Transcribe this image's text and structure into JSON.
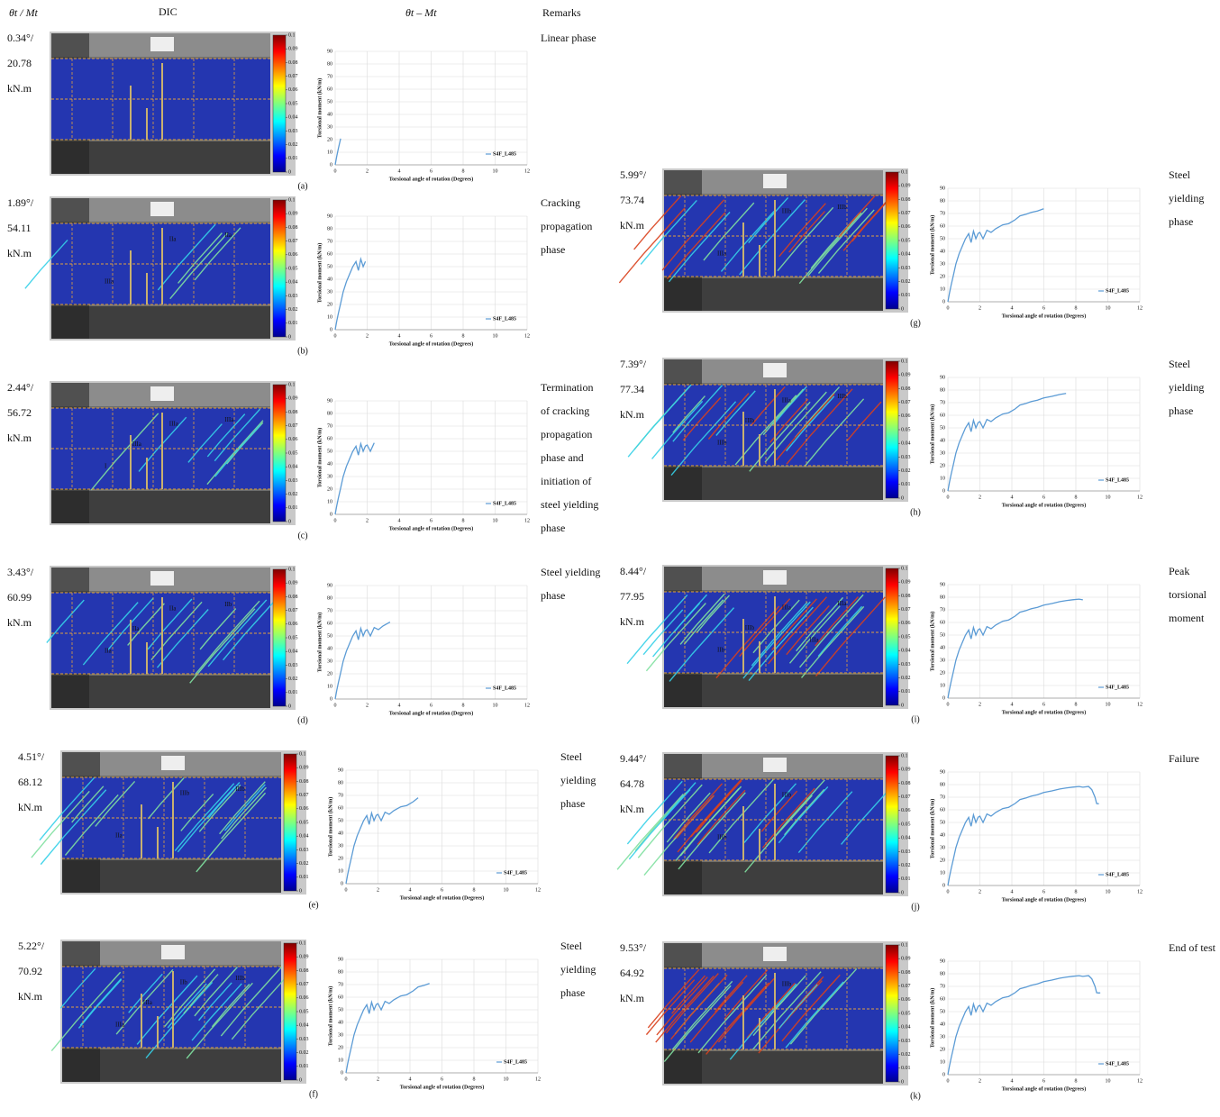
{
  "header": {
    "angle_moment": "θt / Mt",
    "dic": "DIC",
    "curve": "θt – Mt",
    "remarks": "Remarks"
  },
  "colorbar": {
    "ticks": [
      0,
      0.01,
      0.02,
      0.03,
      0.04,
      0.05,
      0.06,
      0.07,
      0.08,
      0.09,
      0.1
    ]
  },
  "panels": [
    {
      "label": "(a)",
      "angle": "0.34°/",
      "moment": "20.78",
      "unit": "kN.m",
      "remark": [
        "Linear phase"
      ],
      "dic_labels": []
    },
    {
      "label": "(b)",
      "angle": "1.89°/",
      "moment": "54.11",
      "unit": "kN.m",
      "remark": [
        "Cracking",
        "propagation",
        "phase"
      ],
      "dic_labels": [
        "IIa",
        "IIIa",
        "IIa"
      ]
    },
    {
      "label": "(c)",
      "angle": "2.44°/",
      "moment": "56.72",
      "unit": "kN.m",
      "remark": [
        "Termination",
        "of cracking",
        "propagation",
        "phase and",
        "initiation of",
        "steel yielding",
        "phase"
      ],
      "dic_labels": [
        "IIIa",
        "I",
        "IIIa",
        "IIIa"
      ]
    },
    {
      "label": "(d)",
      "angle": "3.43°/",
      "moment": "60.99",
      "unit": "kN.m",
      "remark": [
        "Steel yielding",
        "phase"
      ],
      "dic_labels": [
        "IIa",
        "IIa",
        "IIb",
        "IIa"
      ]
    },
    {
      "label": "(e)",
      "angle": "4.51°/",
      "moment": "68.12",
      "unit": "kN.m",
      "remark": [
        "Steel",
        "yielding",
        "phase"
      ],
      "dic_labels": [
        "IIIb",
        "IIa",
        "IIIb"
      ]
    },
    {
      "label": "(f)",
      "angle": "5.22°/",
      "moment": "70.92",
      "unit": "kN.m",
      "remark": [
        "Steel",
        "yielding",
        "phase"
      ],
      "dic_labels": [
        "IIb",
        "IIIa",
        "IIIb",
        "IIIa"
      ]
    },
    {
      "label": "(g)",
      "angle": "5.99°/",
      "moment": "73.74",
      "unit": "kN.m",
      "remark": [
        "Steel",
        "yielding",
        "phase"
      ],
      "dic_labels": [
        "IIIb",
        "IIIa",
        "IIIb"
      ]
    },
    {
      "label": "(h)",
      "angle": "7.39°/",
      "moment": "77.34",
      "unit": "kN.m",
      "remark": [
        "Steel",
        "yielding",
        "phase"
      ],
      "dic_labels": [
        "IIIa",
        "IIIb",
        "IIIb",
        "IIIb"
      ]
    },
    {
      "label": "(i)",
      "angle": "8.44°/",
      "moment": "77.95",
      "unit": "kN.m",
      "remark": [
        "Peak",
        "torsional",
        "moment"
      ],
      "dic_labels": [
        "IIIa",
        "IIb",
        "IIIa",
        "IIIb",
        "IIIa"
      ]
    },
    {
      "label": "(j)",
      "angle": "9.44°/",
      "moment": "64.78",
      "unit": "kN.m",
      "remark": [
        "Failure"
      ],
      "dic_labels": [
        "IIIb",
        "IIIb"
      ]
    },
    {
      "label": "(k)",
      "angle": "9.53°/",
      "moment": "64.92",
      "unit": "kN.m",
      "remark": [
        "End of test"
      ],
      "dic_labels": [
        "IIIb"
      ]
    }
  ],
  "chart_data": [
    {
      "type": "line",
      "xlabel": "Torsional angle of rotation (Degrees)",
      "ylabel": "Torsional moment (kN/m)",
      "xlim": [
        0,
        12
      ],
      "ylim": [
        0,
        90
      ],
      "xticks": [
        0,
        2,
        4,
        6,
        8,
        10,
        12
      ],
      "yticks": [
        0,
        10,
        20,
        30,
        40,
        50,
        60,
        70,
        80,
        90
      ],
      "grid": true,
      "legend": "lower right",
      "series": [
        {
          "name": "S4F_L485",
          "color": "#5b9bd5",
          "x": [
            0,
            0.1,
            0.2,
            0.34
          ],
          "values": [
            0,
            7,
            13,
            20.78
          ]
        }
      ]
    },
    {
      "type": "line",
      "xlabel": "Torsional angle of rotation (Degrees)",
      "ylabel": "Torsional moment (kN/m)",
      "xlim": [
        0,
        12
      ],
      "ylim": [
        0,
        90
      ],
      "xticks": [
        0,
        2,
        4,
        6,
        8,
        10,
        12
      ],
      "yticks": [
        0,
        10,
        20,
        30,
        40,
        50,
        60,
        70,
        80,
        90
      ],
      "grid": true,
      "legend": "lower right",
      "series": [
        {
          "name": "S4F_L485",
          "color": "#5b9bd5",
          "x": [
            0,
            0.1,
            0.2,
            0.34,
            0.5,
            0.7,
            0.9,
            1.1,
            1.3,
            1.45,
            1.6,
            1.75,
            1.89
          ],
          "values": [
            0,
            7,
            13,
            20.78,
            30,
            38,
            44,
            50,
            54,
            47,
            56,
            50,
            54.11
          ]
        }
      ]
    },
    {
      "type": "line",
      "xlabel": "Torsional angle of rotation (Degrees)",
      "ylabel": "Torsional moment (kN/m)",
      "xlim": [
        0,
        12
      ],
      "ylim": [
        0,
        90
      ],
      "xticks": [
        0,
        2,
        4,
        6,
        8,
        10,
        12
      ],
      "yticks": [
        0,
        10,
        20,
        30,
        40,
        50,
        60,
        70,
        80,
        90
      ],
      "grid": true,
      "legend": "lower right",
      "series": [
        {
          "name": "S4F_L485",
          "color": "#5b9bd5",
          "x": [
            0,
            0.1,
            0.2,
            0.34,
            0.5,
            0.7,
            0.9,
            1.1,
            1.3,
            1.45,
            1.6,
            1.75,
            1.89,
            2.0,
            2.2,
            2.44
          ],
          "values": [
            0,
            7,
            13,
            20.78,
            30,
            38,
            44,
            50,
            54,
            47,
            56,
            50,
            54.11,
            55,
            50,
            56.72
          ]
        }
      ]
    },
    {
      "type": "line",
      "xlabel": "Torsional angle of rotation (Degrees)",
      "ylabel": "Torsional moment (kN/m)",
      "xlim": [
        0,
        12
      ],
      "ylim": [
        0,
        90
      ],
      "xticks": [
        0,
        2,
        4,
        6,
        8,
        10,
        12
      ],
      "yticks": [
        0,
        10,
        20,
        30,
        40,
        50,
        60,
        70,
        80,
        90
      ],
      "grid": true,
      "legend": "lower right",
      "series": [
        {
          "name": "S4F_L485",
          "color": "#5b9bd5",
          "x": [
            0,
            0.1,
            0.2,
            0.34,
            0.5,
            0.7,
            0.9,
            1.1,
            1.3,
            1.45,
            1.6,
            1.75,
            1.89,
            2.0,
            2.2,
            2.44,
            2.7,
            3.0,
            3.43
          ],
          "values": [
            0,
            7,
            13,
            20.78,
            30,
            38,
            44,
            50,
            54,
            47,
            56,
            50,
            54.11,
            55,
            50,
            56.72,
            55,
            58,
            60.99
          ]
        }
      ]
    },
    {
      "type": "line",
      "xlabel": "Torsional angle of rotation (Degrees)",
      "ylabel": "Torsional moment (kN/m)",
      "xlim": [
        0,
        12
      ],
      "ylim": [
        0,
        90
      ],
      "xticks": [
        0,
        2,
        4,
        6,
        8,
        10,
        12
      ],
      "yticks": [
        0,
        10,
        20,
        30,
        40,
        50,
        60,
        70,
        80,
        90
      ],
      "grid": true,
      "legend": "lower right",
      "series": [
        {
          "name": "S4F_L485",
          "color": "#5b9bd5",
          "x": [
            0,
            0.1,
            0.2,
            0.34,
            0.5,
            0.7,
            0.9,
            1.1,
            1.3,
            1.45,
            1.6,
            1.75,
            1.89,
            2.0,
            2.2,
            2.44,
            2.7,
            3.0,
            3.43,
            3.8,
            4.2,
            4.51
          ],
          "values": [
            0,
            7,
            13,
            20.78,
            30,
            38,
            44,
            50,
            54,
            47,
            56,
            50,
            54.11,
            55,
            50,
            56.72,
            55,
            58,
            60.99,
            62,
            65,
            68.12
          ]
        }
      ]
    },
    {
      "type": "line",
      "xlabel": "Torsional angle of rotation (Degrees)",
      "ylabel": "Torsional moment (kN/m)",
      "xlim": [
        0,
        12
      ],
      "ylim": [
        0,
        90
      ],
      "xticks": [
        0,
        2,
        4,
        6,
        8,
        10,
        12
      ],
      "yticks": [
        0,
        10,
        20,
        30,
        40,
        50,
        60,
        70,
        80,
        90
      ],
      "grid": true,
      "legend": "lower right",
      "series": [
        {
          "name": "S4F_L485",
          "color": "#5b9bd5",
          "x": [
            0,
            0.1,
            0.2,
            0.34,
            0.5,
            0.7,
            0.9,
            1.1,
            1.3,
            1.45,
            1.6,
            1.75,
            1.89,
            2.0,
            2.2,
            2.44,
            2.7,
            3.0,
            3.43,
            3.8,
            4.2,
            4.51,
            4.9,
            5.22
          ],
          "values": [
            0,
            7,
            13,
            20.78,
            30,
            38,
            44,
            50,
            54,
            47,
            56,
            50,
            54.11,
            55,
            50,
            56.72,
            55,
            58,
            60.99,
            62,
            65,
            68.12,
            69.5,
            70.92
          ]
        }
      ]
    },
    {
      "type": "line",
      "xlabel": "Torsional angle of rotation (Degrees)",
      "ylabel": "Torsional moment (kN/m)",
      "xlim": [
        0,
        12
      ],
      "ylim": [
        0,
        90
      ],
      "xticks": [
        0,
        2,
        4,
        6,
        8,
        10,
        12
      ],
      "yticks": [
        0,
        10,
        20,
        30,
        40,
        50,
        60,
        70,
        80,
        90
      ],
      "grid": true,
      "legend": "lower right",
      "series": [
        {
          "name": "S4F_L485",
          "color": "#5b9bd5",
          "x": [
            0,
            0.1,
            0.2,
            0.34,
            0.5,
            0.7,
            0.9,
            1.1,
            1.3,
            1.45,
            1.6,
            1.75,
            1.89,
            2.0,
            2.2,
            2.44,
            2.7,
            3.0,
            3.43,
            3.8,
            4.2,
            4.51,
            4.9,
            5.22,
            5.6,
            5.99
          ],
          "values": [
            0,
            7,
            13,
            20.78,
            30,
            38,
            44,
            50,
            54,
            47,
            56,
            50,
            54.11,
            55,
            50,
            56.72,
            55,
            58,
            60.99,
            62,
            65,
            68.12,
            69.5,
            70.92,
            72,
            73.74
          ]
        }
      ]
    },
    {
      "type": "line",
      "xlabel": "Torsional angle of rotation (Degrees)",
      "ylabel": "Torsional moment (kN/m)",
      "xlim": [
        0,
        12
      ],
      "ylim": [
        0,
        90
      ],
      "xticks": [
        0,
        2,
        4,
        6,
        8,
        10,
        12
      ],
      "yticks": [
        0,
        10,
        20,
        30,
        40,
        50,
        60,
        70,
        80,
        90
      ],
      "grid": true,
      "legend": "lower right",
      "series": [
        {
          "name": "S4F_L485",
          "color": "#5b9bd5",
          "x": [
            0,
            0.1,
            0.2,
            0.34,
            0.5,
            0.7,
            0.9,
            1.1,
            1.3,
            1.45,
            1.6,
            1.75,
            1.89,
            2.0,
            2.2,
            2.44,
            2.7,
            3.0,
            3.43,
            3.8,
            4.2,
            4.51,
            4.9,
            5.22,
            5.6,
            5.99,
            6.5,
            7.0,
            7.39
          ],
          "values": [
            0,
            7,
            13,
            20.78,
            30,
            38,
            44,
            50,
            54,
            47,
            56,
            50,
            54.11,
            55,
            50,
            56.72,
            55,
            58,
            60.99,
            62,
            65,
            68.12,
            69.5,
            70.92,
            72,
            73.74,
            75,
            76.5,
            77.34
          ]
        }
      ]
    },
    {
      "type": "line",
      "xlabel": "Torsional angle of rotation (Degrees)",
      "ylabel": "Torsional moment (kN/m)",
      "xlim": [
        0,
        12
      ],
      "ylim": [
        0,
        90
      ],
      "xticks": [
        0,
        2,
        4,
        6,
        8,
        10,
        12
      ],
      "yticks": [
        0,
        10,
        20,
        30,
        40,
        50,
        60,
        70,
        80,
        90
      ],
      "grid": true,
      "legend": "lower right",
      "series": [
        {
          "name": "S4F_L485",
          "color": "#5b9bd5",
          "x": [
            0,
            0.1,
            0.2,
            0.34,
            0.5,
            0.7,
            0.9,
            1.1,
            1.3,
            1.45,
            1.6,
            1.75,
            1.89,
            2.0,
            2.2,
            2.44,
            2.7,
            3.0,
            3.43,
            3.8,
            4.2,
            4.51,
            4.9,
            5.22,
            5.6,
            5.99,
            6.5,
            7.0,
            7.39,
            7.8,
            8.2,
            8.44
          ],
          "values": [
            0,
            7,
            13,
            20.78,
            30,
            38,
            44,
            50,
            54,
            47,
            56,
            50,
            54.11,
            55,
            50,
            56.72,
            55,
            58,
            60.99,
            62,
            65,
            68.12,
            69.5,
            70.92,
            72,
            73.74,
            75,
            76.5,
            77.34,
            78,
            78.5,
            77.95
          ]
        }
      ]
    },
    {
      "type": "line",
      "xlabel": "Torsional angle of rotation (Degrees)",
      "ylabel": "Torsional moment (kN/m)",
      "xlim": [
        0,
        12
      ],
      "ylim": [
        0,
        90
      ],
      "xticks": [
        0,
        2,
        4,
        6,
        8,
        10,
        12
      ],
      "yticks": [
        0,
        10,
        20,
        30,
        40,
        50,
        60,
        70,
        80,
        90
      ],
      "grid": true,
      "legend": "lower right",
      "series": [
        {
          "name": "S4F_L485",
          "color": "#5b9bd5",
          "x": [
            0,
            0.1,
            0.2,
            0.34,
            0.5,
            0.7,
            0.9,
            1.1,
            1.3,
            1.45,
            1.6,
            1.75,
            1.89,
            2.0,
            2.2,
            2.44,
            2.7,
            3.0,
            3.43,
            3.8,
            4.2,
            4.51,
            4.9,
            5.22,
            5.6,
            5.99,
            6.5,
            7.0,
            7.39,
            7.8,
            8.2,
            8.44,
            8.8,
            9.0,
            9.2,
            9.3,
            9.44
          ],
          "values": [
            0,
            7,
            13,
            20.78,
            30,
            38,
            44,
            50,
            54,
            47,
            56,
            50,
            54.11,
            55,
            50,
            56.72,
            55,
            58,
            60.99,
            62,
            65,
            68.12,
            69.5,
            70.92,
            72,
            73.74,
            75,
            76.5,
            77.34,
            78,
            78.5,
            77.95,
            78.5,
            76,
            70,
            65,
            64.78
          ]
        }
      ]
    },
    {
      "type": "line",
      "xlabel": "Torsional angle of rotation (Degrees)",
      "ylabel": "Torsional moment (kN/m)",
      "xlim": [
        0,
        12
      ],
      "ylim": [
        0,
        90
      ],
      "xticks": [
        0,
        2,
        4,
        6,
        8,
        10,
        12
      ],
      "yticks": [
        0,
        10,
        20,
        30,
        40,
        50,
        60,
        70,
        80,
        90
      ],
      "grid": true,
      "legend": "lower right",
      "series": [
        {
          "name": "S4F_L485",
          "color": "#5b9bd5",
          "x": [
            0,
            0.1,
            0.2,
            0.34,
            0.5,
            0.7,
            0.9,
            1.1,
            1.3,
            1.45,
            1.6,
            1.75,
            1.89,
            2.0,
            2.2,
            2.44,
            2.7,
            3.0,
            3.43,
            3.8,
            4.2,
            4.51,
            4.9,
            5.22,
            5.6,
            5.99,
            6.5,
            7.0,
            7.39,
            7.8,
            8.2,
            8.44,
            8.8,
            9.0,
            9.2,
            9.3,
            9.44,
            9.53
          ],
          "values": [
            0,
            7,
            13,
            20.78,
            30,
            38,
            44,
            50,
            54,
            47,
            56,
            50,
            54.11,
            55,
            50,
            56.72,
            55,
            58,
            60.99,
            62,
            65,
            68.12,
            69.5,
            70.92,
            72,
            73.74,
            75,
            76.5,
            77.34,
            78,
            78.5,
            77.95,
            78.5,
            76,
            70,
            65,
            64.78,
            64.92
          ]
        }
      ]
    }
  ]
}
